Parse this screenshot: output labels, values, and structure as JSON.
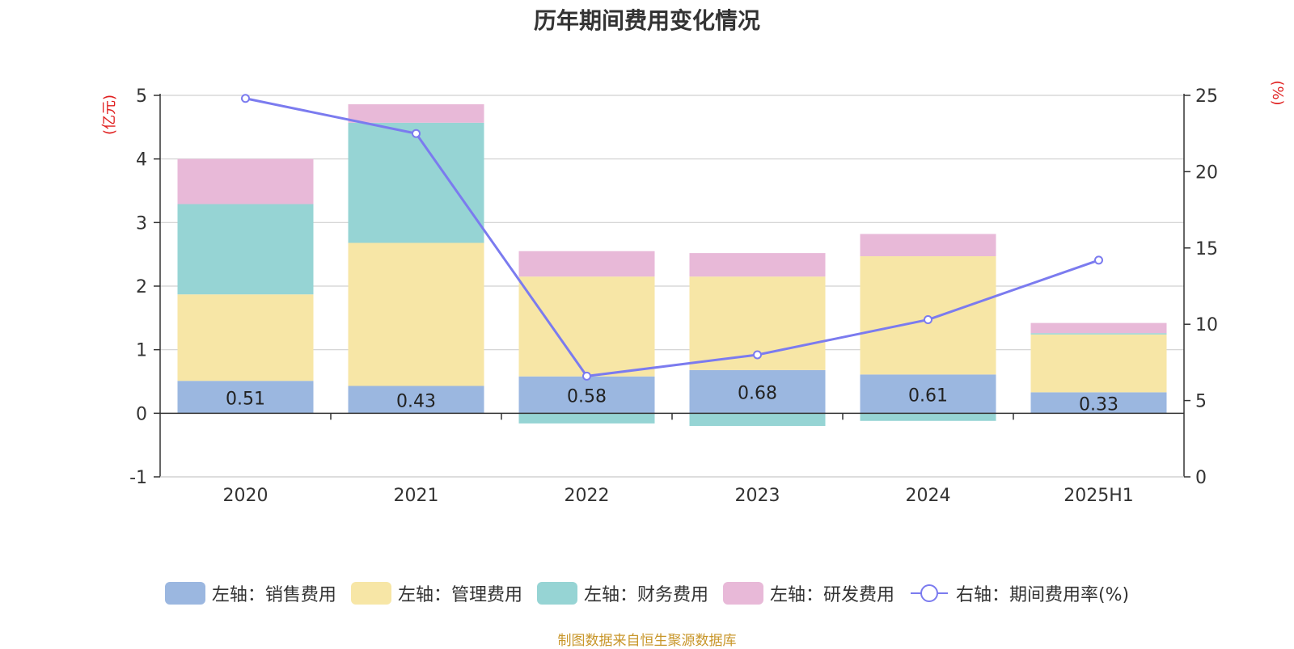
{
  "chart_data": {
    "type": "bar",
    "title": "历年期间费用变化情况",
    "categories": [
      "2020",
      "2021",
      "2022",
      "2023",
      "2024",
      "2025H1"
    ],
    "left_axis": {
      "label": "(亿元)",
      "ylim": [
        -1,
        5
      ],
      "ticks": [
        5,
        4,
        3,
        2,
        1,
        0,
        -1
      ]
    },
    "right_axis": {
      "label": "(%)",
      "ylim": [
        0,
        25
      ],
      "ticks": [
        25,
        20,
        15,
        10,
        5,
        0
      ]
    },
    "series": [
      {
        "name": "左轴：销售费用",
        "kind": "bar",
        "axis": "left",
        "color": "#9bb7e0",
        "values": [
          0.51,
          0.43,
          0.58,
          0.68,
          0.61,
          0.33
        ],
        "labels": [
          "0.51",
          "0.43",
          "0.58",
          "0.68",
          "0.61",
          "0.33"
        ]
      },
      {
        "name": "左轴：管理费用",
        "kind": "bar",
        "axis": "left",
        "color": "#f7e6a6",
        "values": [
          1.36,
          2.25,
          1.57,
          1.47,
          1.86,
          0.91
        ]
      },
      {
        "name": "左轴：财务费用",
        "kind": "bar",
        "axis": "left",
        "color": "#96d4d4",
        "values": [
          1.42,
          1.89,
          -0.16,
          -0.2,
          -0.12,
          0.02
        ]
      },
      {
        "name": "左轴：研发费用",
        "kind": "bar",
        "axis": "left",
        "color": "#e8b9d8",
        "values": [
          0.71,
          0.29,
          0.4,
          0.37,
          0.35,
          0.16
        ]
      },
      {
        "name": "右轴：期间费用率(%)",
        "kind": "line",
        "axis": "right",
        "color": "#7b7bef",
        "values": [
          24.8,
          22.5,
          6.6,
          8.0,
          10.3,
          14.2
        ]
      }
    ],
    "grid": true,
    "legend_position": "bottom"
  },
  "source_note": "制图数据来自恒生聚源数据库"
}
